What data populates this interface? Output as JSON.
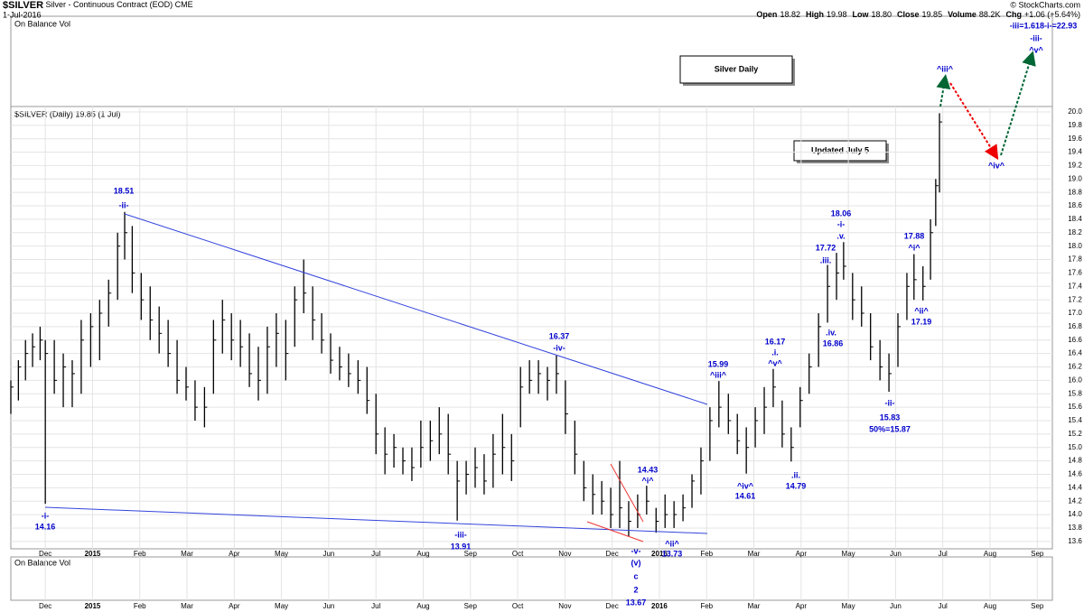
{
  "header": {
    "symbol": "$SILVER",
    "name": "Silver - Continuous Contract (EOD)",
    "exchange": "CME",
    "date": "1-Jul-2016",
    "quote": [
      {
        "label": "Open",
        "value": "18.82"
      },
      {
        "label": "High",
        "value": "19.98"
      },
      {
        "label": "Low",
        "value": "18.80"
      },
      {
        "label": "Close",
        "value": "19.85"
      },
      {
        "label": "Volume",
        "value": "88.2K"
      },
      {
        "label": "Chg",
        "value": "+1.06 (+5.64%)"
      }
    ],
    "copyright": "© StockCharts.com",
    "indicator": "On Balance Vol",
    "price_label": "$SILVER (Daily) 19.85 (1 Jul)",
    "title_box": "Silver Daily",
    "update_box": "Updated July 5"
  },
  "chart_data": {
    "type": "ohlc",
    "color": "#000000",
    "annotation_color": "#0000cc",
    "grid": true,
    "x": [
      -0.73,
      -0.57,
      -0.42,
      -0.27,
      -0.11,
      0,
      0.19,
      0.38,
      0.57,
      0.76,
      0.96,
      1.15,
      1.34,
      1.53,
      1.68,
      1.84,
      2.03,
      2.22,
      2.41,
      2.6,
      2.79,
      2.98,
      3.17,
      3.37,
      3.56,
      3.75,
      3.94,
      4.13,
      4.32,
      4.51,
      4.7,
      4.89,
      5.09,
      5.28,
      5.47,
      5.66,
      5.85,
      6.04,
      6.23,
      6.42,
      6.62,
      6.81,
      7,
      7.19,
      7.38,
      7.57,
      7.76,
      7.95,
      8.15,
      8.34,
      8.53,
      8.72,
      8.91,
      9.1,
      9.29,
      9.48,
      9.68,
      9.87,
      10.06,
      10.25,
      10.44,
      10.63,
      10.82,
      11.01,
      11.21,
      11.4,
      11.59,
      11.78,
      11.97,
      12.16,
      12.35,
      12.54,
      12.73,
      12.93,
      13.12,
      13.31,
      13.5,
      13.69,
      13.88,
      14.07,
      14.26,
      14.46,
      14.65,
      14.84,
      15.03,
      15.22,
      15.41,
      15.6,
      15.79,
      15.98,
      16.17,
      16.37,
      16.56,
      16.75,
      16.9,
      17.09,
      17.28,
      17.47,
      17.67,
      17.86,
      18.05,
      18.24,
      18.39,
      18.58,
      18.74,
      18.85,
      18.93
    ],
    "low": [
      15.5,
      15.7,
      16,
      16.2,
      16.3,
      14.16,
      15.8,
      15.6,
      15.6,
      15.8,
      16.2,
      16.3,
      16.8,
      17.2,
      17.8,
      17.3,
      16.9,
      16.6,
      16.4,
      16.2,
      15.8,
      15.7,
      15.4,
      15.3,
      15.8,
      16.4,
      16.3,
      16.2,
      15.9,
      15.7,
      15.8,
      16.2,
      16,
      16.5,
      17,
      16.6,
      16.4,
      16.1,
      16,
      15.9,
      15.8,
      15.5,
      14.9,
      14.6,
      14.7,
      14.6,
      14.5,
      14.7,
      14.8,
      14.9,
      14.6,
      13.91,
      14.3,
      14.4,
      14.3,
      14.4,
      14.6,
      14.5,
      15.3,
      15.8,
      15.8,
      15.7,
      15.8,
      15.2,
      14.6,
      14.2,
      14,
      14,
      13.8,
      13.8,
      13.67,
      13.8,
      14,
      13.73,
      13.8,
      13.8,
      13.9,
      14.1,
      14.3,
      14.8,
      15.3,
      15.2,
      14.9,
      14.61,
      15,
      15.2,
      15.6,
      15,
      14.79,
      15.3,
      15.8,
      16.2,
      16.86,
      17.2,
      17.5,
      16.9,
      16.8,
      16.3,
      16,
      15.83,
      16.2,
      16.9,
      17.2,
      17.19,
      17.5,
      18.3,
      18.8
    ],
    "high": [
      16,
      16.3,
      16.6,
      16.7,
      16.8,
      16.6,
      16.6,
      16.4,
      16.3,
      16.9,
      17,
      17.2,
      17.5,
      18.2,
      18.51,
      18.3,
      17.6,
      17.4,
      17.1,
      16.9,
      16.6,
      16.2,
      16,
      15.9,
      16.9,
      17.2,
      17,
      16.9,
      16.7,
      16.5,
      16.8,
      17,
      16.9,
      17.4,
      17.8,
      17.4,
      17,
      16.7,
      16.5,
      16.4,
      16.3,
      16.2,
      15.8,
      15.3,
      15.2,
      15,
      15,
      15.4,
      15.4,
      15.6,
      15.5,
      14.8,
      14.8,
      15,
      14.9,
      15.2,
      15.5,
      15.2,
      16.2,
      16.3,
      16.3,
      16.2,
      16.37,
      16,
      15.4,
      14.8,
      14.6,
      14.5,
      14.4,
      14.8,
      14.2,
      14.3,
      14.43,
      14.1,
      14.3,
      14.2,
      14.3,
      14.6,
      15,
      15.6,
      15.99,
      15.8,
      15.5,
      15.3,
      15.6,
      15.9,
      16.17,
      15.7,
      15.3,
      15.9,
      16.4,
      17,
      17.72,
      17.9,
      18.06,
      17.6,
      17.4,
      17,
      16.6,
      16.4,
      17,
      17.6,
      17.88,
      17.7,
      18.4,
      19,
      19.98
    ],
    "close": [
      15.9,
      16.2,
      16.4,
      16.5,
      16.6,
      16.4,
      16,
      16.2,
      16.1,
      16.6,
      16.8,
      17,
      17.3,
      18,
      18.2,
      17.6,
      17.2,
      16.9,
      16.7,
      16.4,
      16,
      15.9,
      15.6,
      15.6,
      16.6,
      16.9,
      16.6,
      16.5,
      16.1,
      16,
      16.5,
      16.7,
      16.4,
      17.2,
      17.3,
      16.9,
      16.6,
      16.3,
      16.2,
      16.1,
      16,
      15.7,
      15.2,
      14.9,
      15,
      14.8,
      14.7,
      15,
      15.1,
      15.2,
      14.9,
      14.5,
      14.6,
      14.7,
      14.5,
      14.9,
      15,
      14.8,
      15.9,
      16,
      16.1,
      16,
      16.1,
      15.5,
      14.9,
      14.4,
      14.3,
      14.2,
      14,
      14.1,
      13.9,
      14,
      14.2,
      13.9,
      14,
      14,
      14.1,
      14.5,
      14.8,
      15.4,
      15.6,
      15.4,
      15.1,
      15,
      15.4,
      15.6,
      15.9,
      15.2,
      15,
      15.7,
      16.2,
      16.8,
      17.4,
      17.6,
      17.7,
      17.2,
      17,
      16.5,
      16.2,
      16.1,
      16.8,
      17.4,
      17.5,
      17.4,
      18.2,
      18.9,
      19.85
    ],
    "xlim": [
      -0.73,
      21.32
    ],
    "xticks": [
      {
        "value": 0,
        "label": "Dec"
      },
      {
        "value": 1,
        "label": "2015"
      },
      {
        "value": 2,
        "label": "Feb"
      },
      {
        "value": 3,
        "label": "Mar"
      },
      {
        "value": 4,
        "label": "Apr"
      },
      {
        "value": 5,
        "label": "May"
      },
      {
        "value": 6,
        "label": "Jun"
      },
      {
        "value": 7,
        "label": "Jul"
      },
      {
        "value": 8,
        "label": "Aug"
      },
      {
        "value": 9,
        "label": "Sep"
      },
      {
        "value": 10,
        "label": "Oct"
      },
      {
        "value": 11,
        "label": "Nov"
      },
      {
        "value": 12,
        "label": "Dec"
      },
      {
        "value": 13,
        "label": "2016"
      },
      {
        "value": 14,
        "label": "Feb"
      },
      {
        "value": 15,
        "label": "Mar"
      },
      {
        "value": 16,
        "label": "Apr"
      },
      {
        "value": 17,
        "label": "May"
      },
      {
        "value": 18,
        "label": "Jun"
      },
      {
        "value": 19,
        "label": "Jul"
      },
      {
        "value": 20,
        "label": "Aug"
      },
      {
        "value": 21,
        "label": "Sep"
      }
    ],
    "ylim": [
      13.49,
      20.08
    ],
    "yticks": [
      13.6,
      13.8,
      {
        "value": 14,
        "label": "14.0"
      },
      14.2,
      14.4,
      14.6,
      14.8,
      {
        "value": 15,
        "label": "15.0"
      },
      15.2,
      15.4,
      15.6,
      15.8,
      {
        "value": 16,
        "label": "16.0"
      },
      16.2,
      16.4,
      16.6,
      16.8,
      {
        "value": 17,
        "label": "17.0"
      },
      17.2,
      17.4,
      17.6,
      17.8,
      {
        "value": 18,
        "label": "18.0"
      },
      18.2,
      18.4,
      18.6,
      18.8,
      {
        "value": 19,
        "label": "19.0"
      },
      19.2,
      19.4,
      19.6,
      19.8,
      {
        "value": 20,
        "label": "20.0"
      }
    ],
    "annotations": [
      "18.51",
      "-ii-",
      "-i-",
      "14.16",
      "-iii-",
      "13.91",
      "16.37",
      "-iv-",
      "14.43",
      "^i^",
      "-v-",
      "(v)",
      "c",
      "2",
      "13.67",
      "^ii^",
      "13.73",
      "15.99",
      "^iii^",
      "^iv^",
      "14.61",
      "16.17",
      ".i.",
      "^v^",
      ".ii.",
      "14.79",
      "17.72",
      ".iii.",
      "18.06",
      "-i-",
      ".v.",
      ".iv.",
      "16.86",
      "-ii-",
      "15.83",
      "50%=15.87",
      "17.88",
      "^i^",
      "^ii^",
      "17.19",
      "^iii^",
      "^iv^",
      "-iii-",
      "^v^",
      "-iii=1.618-i-=22.93"
    ]
  }
}
